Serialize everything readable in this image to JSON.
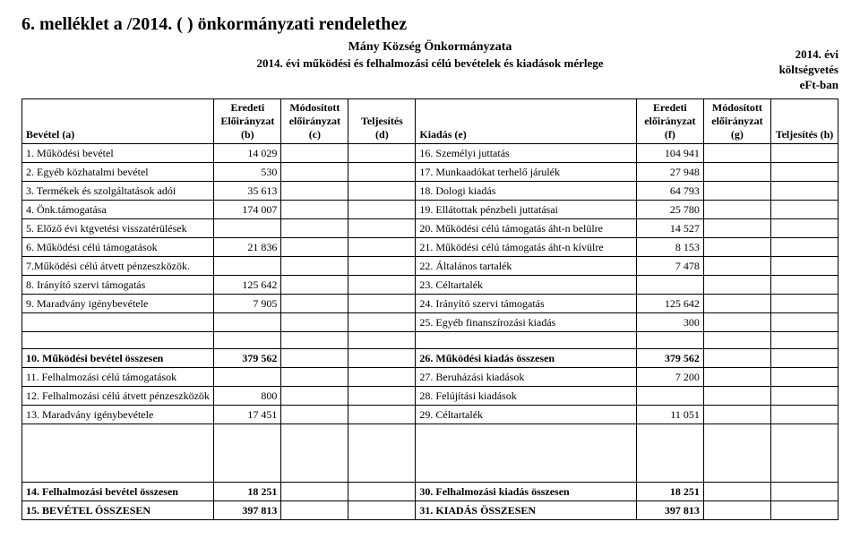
{
  "title_main": "6. melléklet a /2014. (   ) önkormányzati rendelethez",
  "subtitle1": "Mány Község Önkormányzata",
  "subtitle2": "2014. évi működési és felhalmozási célú bevételek és kiadások mérlege",
  "right_year": "2014. évi",
  "right_budget": "költségvetés",
  "right_unit": "eFt-ban",
  "headers": {
    "a": "Bevétel (a)",
    "b1": "Eredeti",
    "b2": "Előirányzat",
    "b3": "(b)",
    "c1": "Módosított",
    "c2": "előirányzat",
    "c3": "(c)",
    "d1": "Teljesítés",
    "d2": "(d)",
    "e": "Kiadás (e)",
    "f1": "Eredeti",
    "f2": "előirányzat",
    "f3": "(f)",
    "g1": "Módosított",
    "g2": "előirányzat",
    "g3": "(g)",
    "h": "Teljesítés (h)"
  },
  "rows": [
    {
      "la": "1. Működési bevétel",
      "b": "14 029",
      "le": "16. Személyi juttatás",
      "f": "104 941"
    },
    {
      "la": "2. Egyéb közhatalmi bevétel",
      "b": "530",
      "le": "17. Munkaadókat terhelő járulék",
      "f": "27 948"
    },
    {
      "la": "3. Termékek és szolgáltatások adói",
      "b": "35 613",
      "le": "18. Dologi kiadás",
      "f": "64 793"
    },
    {
      "la": "4. Önk.támogatása",
      "b": "174 007",
      "le": "19. Ellátottak pénzbeli juttatásai",
      "f": "25 780"
    },
    {
      "la": "5. Előző évi ktgvetési visszatérülések",
      "b": "",
      "le": "20. Működési célú támogatás áht-n belülre",
      "f": "14 527"
    },
    {
      "la": "6. Működési célú támogatások",
      "b": "21 836",
      "le": "21. Működési célú támogatás áht-n kívülre",
      "f": "8 153"
    },
    {
      "la": "7.Működési célú átvett pénzeszközök.",
      "b": "",
      "le": "22. Általános tartalék",
      "f": "7 478"
    },
    {
      "la": "8. Irányító szervi támogatás",
      "b": "125 642",
      "le": "23. Céltartalék",
      "f": ""
    },
    {
      "la": "9. Maradvány igénybevétele",
      "b": "7 905",
      "le": "24. Irányító szervi támogatás",
      "f": "125 642"
    },
    {
      "la": "",
      "b": "",
      "le": "25. Egyéb finanszírozási kiadás",
      "f": "300"
    }
  ],
  "sum1": {
    "la": "10. Működési bevétel összesen",
    "b": "379 562",
    "le": "26. Működési kiadás összesen",
    "f": "379 562"
  },
  "rows2": [
    {
      "la": "11. Felhalmozási célú támogatások",
      "b": "",
      "le": "27. Beruházási kiadások",
      "f": "7 200"
    },
    {
      "la": "12. Felhalmozási célú átvett pénzeszközök",
      "b": "800",
      "le": "28. Felújítási kiadások",
      "f": ""
    },
    {
      "la": "13. Maradvány igénybevétele",
      "b": "17 451",
      "le": "29. Céltartalék",
      "f": "11 051"
    }
  ],
  "sum2": {
    "la": "14. Felhalmozási bevétel összesen",
    "b": "18 251",
    "le": "30. Felhalmozási kiadás összesen",
    "f": "18 251"
  },
  "grand": {
    "la": "15. BEVÉTEL ÖSSZESEN",
    "b": "397 813",
    "le": "31. KIADÁS ÖSSZESEN",
    "f": "397 813"
  }
}
